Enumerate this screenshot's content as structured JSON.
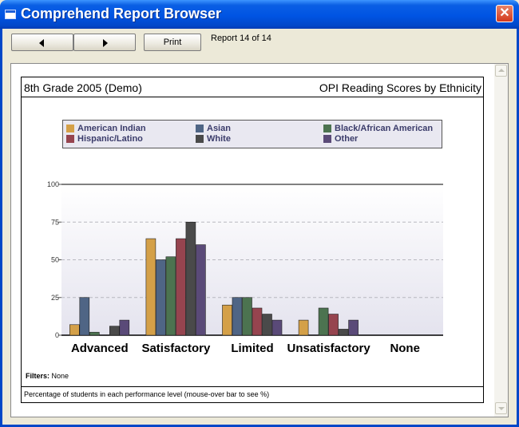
{
  "window": {
    "title": "Comprehend Report Browser"
  },
  "toolbar": {
    "print_label": "Print",
    "report_position": "Report 14 of 14"
  },
  "report": {
    "header_left": "8th Grade 2005 (Demo)",
    "header_right": "OPI Reading Scores by Ethnicity",
    "filters_label": "Filters:",
    "filters_value": "None",
    "footnote": "Percentage of students in each performance level (mouse-over bar to see %)"
  },
  "chart_data": {
    "type": "bar",
    "title": "OPI Reading Scores by Ethnicity",
    "categories": [
      "Advanced",
      "Satisfactory",
      "Limited",
      "Unsatisfactory",
      "None"
    ],
    "series": [
      {
        "name": "American Indian",
        "color": "#d4a048",
        "values": [
          7,
          64,
          20,
          10,
          0
        ]
      },
      {
        "name": "Asian",
        "color": "#4f6585",
        "values": [
          25,
          50,
          25,
          0,
          0
        ]
      },
      {
        "name": "Black/African American",
        "color": "#4c7350",
        "values": [
          2,
          52,
          25,
          18,
          0
        ]
      },
      {
        "name": "Hispanic/Latino",
        "color": "#96444f",
        "values": [
          0,
          64,
          18,
          14,
          0
        ]
      },
      {
        "name": "White",
        "color": "#4a4a4a",
        "values": [
          6,
          75,
          14,
          4,
          0
        ]
      },
      {
        "name": "Other",
        "color": "#5a4a78",
        "values": [
          10,
          60,
          10,
          10,
          0
        ]
      }
    ],
    "y_ticks": [
      "0",
      "25",
      "50",
      "75",
      "100"
    ],
    "ylim": [
      0,
      100
    ],
    "grid": true,
    "legend_position": "top"
  }
}
